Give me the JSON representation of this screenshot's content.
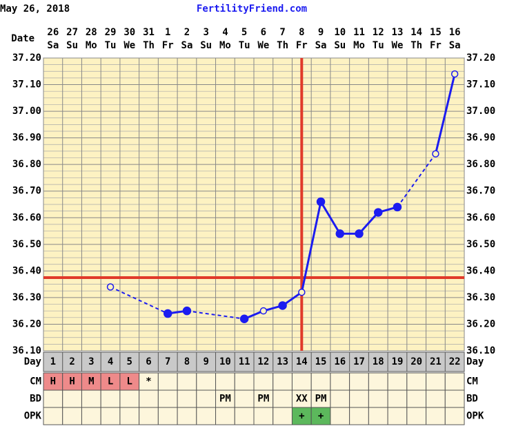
{
  "chart_data": {
    "type": "line",
    "subtitle": "May 26, 2018",
    "title": "FertilityFriend.com",
    "date_label": "Date",
    "day_label": "Day",
    "categories": [
      1,
      2,
      3,
      4,
      5,
      6,
      7,
      8,
      9,
      10,
      11,
      12,
      13,
      14,
      15,
      16,
      17,
      18,
      19,
      20,
      21,
      22
    ],
    "dates": [
      26,
      27,
      28,
      29,
      30,
      31,
      1,
      2,
      3,
      4,
      5,
      6,
      7,
      8,
      9,
      10,
      11,
      12,
      13,
      14,
      15,
      16
    ],
    "weekdays": [
      "Sa",
      "Su",
      "Mo",
      "Tu",
      "We",
      "Th",
      "Fr",
      "Sa",
      "Su",
      "Mo",
      "Tu",
      "We",
      "Th",
      "Fr",
      "Sa",
      "Su",
      "Mo",
      "Tu",
      "We",
      "Th",
      "Fr",
      "Sa"
    ],
    "series": [
      {
        "color": "#1c1cf0",
        "values": [
          null,
          null,
          null,
          36.34,
          null,
          null,
          36.24,
          36.25,
          null,
          null,
          36.22,
          36.25,
          36.27,
          36.32,
          36.66,
          36.54,
          36.54,
          36.62,
          36.64,
          null,
          36.84,
          37.14
        ],
        "open_markers": [
          false,
          false,
          false,
          true,
          false,
          false,
          false,
          false,
          false,
          false,
          false,
          true,
          false,
          true,
          false,
          false,
          false,
          false,
          false,
          false,
          true,
          true
        ]
      }
    ],
    "ylim": [
      36.1,
      37.2
    ],
    "yticks": [
      {
        "value": 36.1,
        "label": "36.10"
      },
      {
        "value": 36.2,
        "label": "36.20"
      },
      {
        "value": 36.3,
        "label": "36.30"
      },
      {
        "value": 36.4,
        "label": "36.40"
      },
      {
        "value": 36.5,
        "label": "36.50"
      },
      {
        "value": 36.6,
        "label": "36.60"
      },
      {
        "value": 36.7,
        "label": "36.70"
      },
      {
        "value": 36.8,
        "label": "36.80"
      },
      {
        "value": 36.9,
        "label": "36.90"
      },
      {
        "value": 37.0,
        "label": "37.00"
      },
      {
        "value": 37.1,
        "label": "37.10"
      },
      {
        "value": 37.2,
        "label": "37.20"
      }
    ],
    "grid": true,
    "coverline": {
      "value": 36.375,
      "color": "#e03a2a"
    },
    "ovulation_day": 14,
    "rows": [
      {
        "label": "CM",
        "cells": [
          "H",
          "H",
          "M",
          "L",
          "L",
          "*",
          null,
          null,
          null,
          null,
          null,
          null,
          null,
          null,
          null,
          null,
          null,
          null,
          null,
          null,
          null,
          null
        ],
        "cell_colors": [
          "#ee8a8a",
          "#ee8a8a",
          "#ee8a8a",
          "#ee8a8a",
          "#ee8a8a",
          null,
          null,
          null,
          null,
          null,
          null,
          null,
          null,
          null,
          null,
          null,
          null,
          null,
          null,
          null,
          null,
          null
        ]
      },
      {
        "label": "BD",
        "cells": [
          null,
          null,
          null,
          null,
          null,
          null,
          null,
          null,
          null,
          "PM",
          null,
          "PM",
          null,
          "XX",
          "PM",
          null,
          null,
          null,
          null,
          null,
          null,
          null
        ]
      },
      {
        "label": "OPK",
        "cells": [
          null,
          null,
          null,
          null,
          null,
          null,
          null,
          null,
          null,
          null,
          null,
          null,
          null,
          "+",
          "+",
          null,
          null,
          null,
          null,
          null,
          null,
          null
        ],
        "cell_colors": [
          null,
          null,
          null,
          null,
          null,
          null,
          null,
          null,
          null,
          null,
          null,
          null,
          null,
          "#5cb85c",
          "#5cb85c",
          null,
          null,
          null,
          null,
          null,
          null,
          null
        ]
      }
    ]
  }
}
